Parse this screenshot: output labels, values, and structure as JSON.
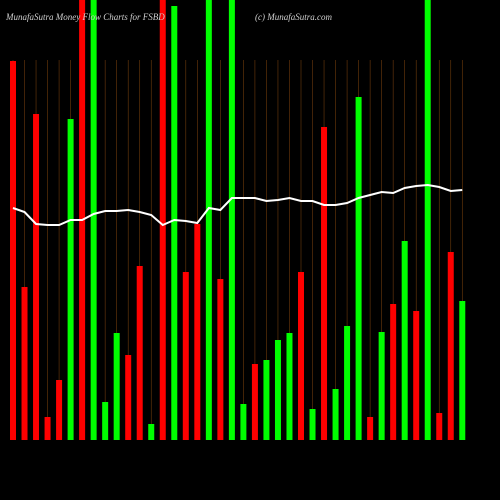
{
  "chart_data": {
    "type": "bar",
    "title": "MunafaSutra  Money Flow  Charts for FSBD",
    "subtitle": "(c) MunafaSutra.com",
    "categories": [
      null,
      null,
      null,
      null,
      null,
      null,
      null,
      null,
      null,
      null,
      null,
      null,
      null,
      null,
      null,
      null,
      null,
      null,
      null,
      null,
      null,
      null,
      null,
      null,
      null,
      null,
      null,
      null,
      null,
      null,
      null,
      null,
      null,
      null,
      null,
      null,
      null,
      null,
      null,
      null
    ],
    "values": [
      379,
      153,
      326,
      23,
      60,
      321,
      440,
      440,
      38,
      107,
      85,
      174,
      16,
      440,
      434,
      168,
      216,
      440,
      161,
      440,
      36,
      76,
      80,
      100,
      107,
      168,
      31,
      313,
      51,
      114,
      343,
      23,
      108,
      136,
      199,
      129,
      440,
      27,
      188,
      139
    ],
    "colors": [
      "#ff0000",
      "#ff0000",
      "#ff0000",
      "#ff0000",
      "#ff0000",
      "#00ff00",
      "#ff0000",
      "#00ff00",
      "#00ff00",
      "#00ff00",
      "#ff0000",
      "#ff0000",
      "#00ff00",
      "#ff0000",
      "#00ff00",
      "#ff0000",
      "#ff0000",
      "#00ff00",
      "#ff0000",
      "#00ff00",
      "#00ff00",
      "#ff0000",
      "#00ff00",
      "#00ff00",
      "#00ff00",
      "#ff0000",
      "#00ff00",
      "#ff0000",
      "#00ff00",
      "#00ff00",
      "#00ff00",
      "#ff0000",
      "#00ff00",
      "#ff0000",
      "#00ff00",
      "#ff0000",
      "#00ff00",
      "#ff0000",
      "#ff0000",
      "#00ff00"
    ],
    "line": {
      "color": "#ffffff",
      "values": [
        232,
        228,
        216,
        215,
        215,
        220,
        220,
        226,
        229,
        229,
        230,
        228,
        225,
        215,
        220,
        219,
        217,
        232,
        230,
        242,
        242,
        242,
        239,
        240,
        242,
        239,
        239,
        235,
        235,
        237,
        242,
        245,
        248,
        247,
        252,
        254,
        255,
        253,
        249,
        250
      ]
    },
    "ylim": [
      0,
      440
    ]
  }
}
